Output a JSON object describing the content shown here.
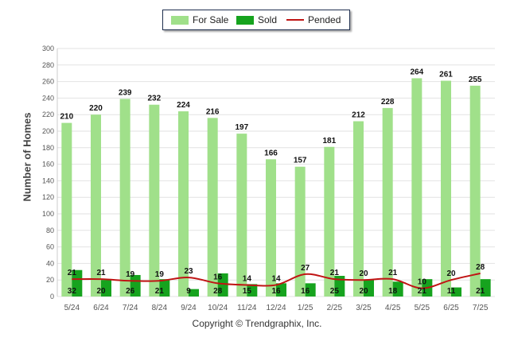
{
  "legend": {
    "for_sale": "For Sale",
    "sold": "Sold",
    "pended": "Pended"
  },
  "footer": {
    "copyright": "Copyright © Trendgraphix, Inc."
  },
  "chart_data": {
    "type": "bar",
    "categories": [
      "5/24",
      "6/24",
      "7/24",
      "8/24",
      "9/24",
      "10/24",
      "11/24",
      "12/24",
      "1/25",
      "2/25",
      "3/25",
      "4/25",
      "5/25",
      "6/25",
      "7/25"
    ],
    "series": [
      {
        "name": "For Sale",
        "kind": "bar",
        "color": "#a0e08a",
        "values": [
          210,
          220,
          239,
          232,
          224,
          216,
          197,
          166,
          157,
          181,
          212,
          228,
          264,
          261,
          255
        ]
      },
      {
        "name": "Sold",
        "kind": "bar",
        "color": "#16a31e",
        "values": [
          32,
          20,
          26,
          21,
          9,
          28,
          15,
          16,
          16,
          25,
          20,
          18,
          21,
          11,
          21
        ]
      },
      {
        "name": "Pended",
        "kind": "line",
        "color": "#c01414",
        "values": [
          21,
          21,
          19,
          19,
          23,
          16,
          14,
          14,
          27,
          21,
          20,
          21,
          10,
          20,
          28
        ]
      }
    ],
    "ylabel": "Number of Homes",
    "xlabel": "",
    "ylim": [
      0,
      300
    ],
    "yticks": [
      0,
      20,
      40,
      60,
      80,
      100,
      120,
      140,
      160,
      180,
      200,
      220,
      240,
      260,
      280,
      300
    ],
    "grid": true,
    "legend_position": "top-center"
  }
}
